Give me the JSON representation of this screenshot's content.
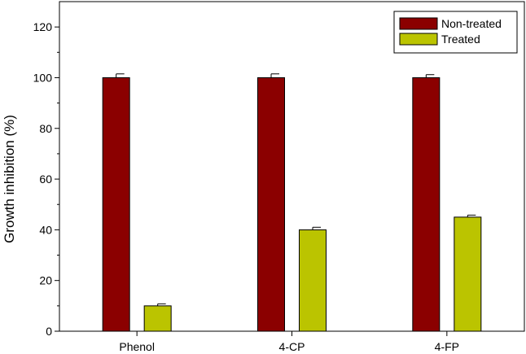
{
  "chart_data": {
    "type": "bar",
    "title": "",
    "xlabel": "",
    "ylabel": "Growth inhibition (%)",
    "ylim": [
      0,
      130
    ],
    "yticks": [
      0,
      20,
      40,
      60,
      80,
      100,
      120
    ],
    "categories": [
      "Phenol",
      "4-CP",
      "4-FP"
    ],
    "series": [
      {
        "name": "Non-treated",
        "color": "#8B0000",
        "values": [
          100,
          100,
          100
        ],
        "errors": [
          1.5,
          1.5,
          1.2
        ]
      },
      {
        "name": "Treated",
        "color": "#BBC400",
        "values": [
          10,
          40,
          45
        ],
        "errors": [
          0.8,
          1.0,
          0.8
        ]
      }
    ],
    "legend": {
      "position": "top-right"
    },
    "grid": false
  }
}
